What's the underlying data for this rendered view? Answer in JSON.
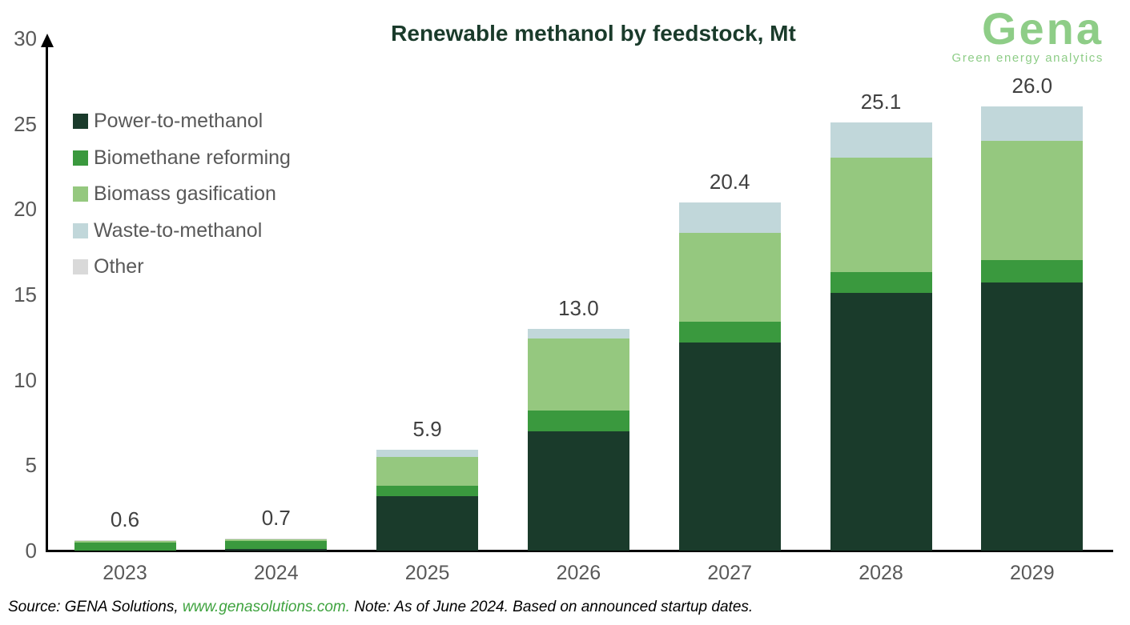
{
  "title": "Renewable methanol by feedstock, Mt",
  "logo": {
    "name": "Gena",
    "tagline": "Green energy analytics",
    "color": "#8ecd87"
  },
  "footer": {
    "prefix": "Source: GENA Solutions, ",
    "link": "www.genasolutions.com.",
    "suffix": " Note: As of June 2024. Based on announced startup dates."
  },
  "chart_data": {
    "type": "bar",
    "stacked": true,
    "title": "Renewable methanol by feedstock, Mt",
    "unit": "Mt",
    "categories": [
      "2023",
      "2024",
      "2025",
      "2026",
      "2027",
      "2028",
      "2029"
    ],
    "totals_display": [
      "0.6",
      "0.7",
      "5.9",
      "13.0",
      "20.4",
      "25.1",
      "26.0"
    ],
    "series": [
      {
        "name": "Power-to-methanol",
        "color": "#1a3b2b",
        "values": [
          0,
          0.1,
          3.2,
          7.0,
          12.2,
          15.1,
          15.7
        ]
      },
      {
        "name": "Biomethane reforming",
        "color": "#3a993e",
        "values": [
          0.45,
          0.45,
          0.6,
          1.2,
          1.2,
          1.2,
          1.3
        ]
      },
      {
        "name": "Biomass gasification",
        "color": "#95c87f",
        "values": [
          0.1,
          0.1,
          1.7,
          4.2,
          5.2,
          6.7,
          7.0
        ]
      },
      {
        "name": "Waste-to-methanol",
        "color": "#c1d7da",
        "values": [
          0,
          0,
          0.4,
          0.6,
          1.8,
          2.1,
          2.0
        ]
      },
      {
        "name": "Other",
        "color": "#d9d9d9",
        "values": [
          0.05,
          0.05,
          0,
          0,
          0,
          0,
          0
        ]
      }
    ],
    "ylim": [
      0,
      30
    ],
    "yticks": [
      0,
      5,
      10,
      15,
      20,
      25,
      30
    ],
    "grid": false,
    "legend_position": "upper-left",
    "xlabel": "",
    "ylabel": ""
  }
}
